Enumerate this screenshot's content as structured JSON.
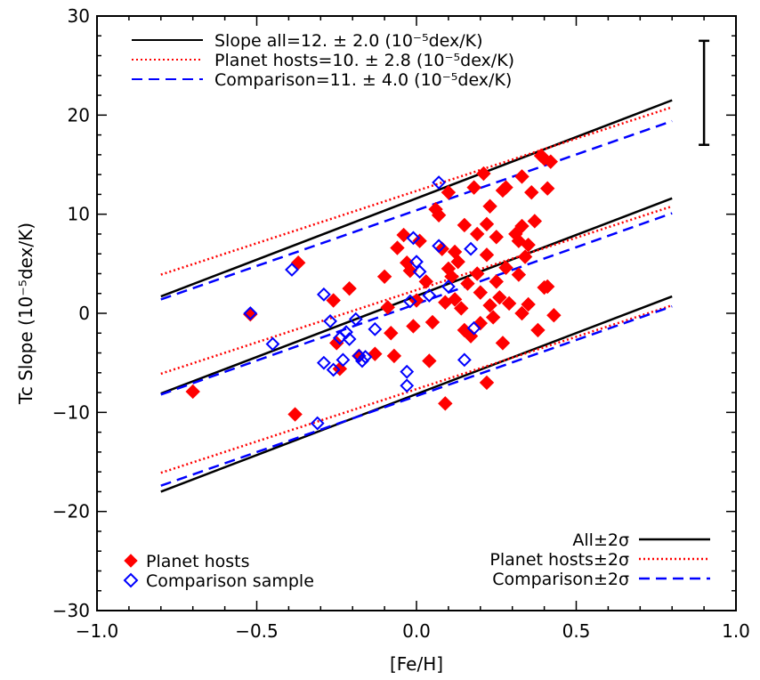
{
  "chart_data": {
    "type": "scatter",
    "xlabel": "[Fe/H]",
    "ylabel": "Tc Slope (10⁻⁵dex/K)",
    "xlim": [
      -1.0,
      1.0
    ],
    "ylim": [
      -30,
      30
    ],
    "x_ticks": [
      "−1.0",
      "−0.5",
      "0.0",
      "0.5",
      "1.0"
    ],
    "y_ticks": [
      "−30",
      "−20",
      "−10",
      "0",
      "10",
      "20",
      "30"
    ],
    "grid": false,
    "fit_legend": {
      "placement": "top-left",
      "entries": [
        {
          "label": "Slope all=12. ± 2.0 (10⁻⁵dex/K)",
          "style": "solid",
          "color": "#000000"
        },
        {
          "label": "Planet hosts=10. ± 2.8 (10⁻⁵dex/K)",
          "style": "dotted",
          "color": "#ff0000"
        },
        {
          "label": "Comparison=11. ± 4.0 (10⁻⁵dex/K)",
          "style": "dashed",
          "color": "#0000ff"
        }
      ]
    },
    "marker_legend": {
      "placement": "bottom-left",
      "entries": [
        {
          "label": "Planet hosts",
          "marker": "filled-diamond",
          "color": "#ff0000"
        },
        {
          "label": "Comparison sample",
          "marker": "open-diamond",
          "color": "#0000ff"
        }
      ]
    },
    "band_legend": {
      "placement": "bottom-right",
      "entries": [
        {
          "label": "All±2σ",
          "style": "solid",
          "color": "#000000"
        },
        {
          "label": "Planet hosts±2σ",
          "style": "dotted",
          "color": "#ff0000"
        },
        {
          "label": "Comparison±2σ",
          "style": "dashed",
          "color": "#0000ff"
        }
      ]
    },
    "error_bar": {
      "x": 0.9,
      "y_low": 17.0,
      "y_high": 27.5
    },
    "fit_lines": [
      {
        "series": "All",
        "color": "#000000",
        "style": "solid",
        "x": [
          -0.8,
          0.8
        ],
        "center": [
          -8.1,
          11.6
        ],
        "upper": [
          1.7,
          21.5
        ],
        "lower": [
          -18.0,
          1.7
        ]
      },
      {
        "series": "Planet hosts",
        "color": "#ff0000",
        "style": "dotted",
        "x": [
          -0.8,
          0.8
        ],
        "center": [
          -6.1,
          10.8
        ],
        "upper": [
          3.9,
          20.8
        ],
        "lower": [
          -16.1,
          0.8
        ]
      },
      {
        "series": "Comparison",
        "color": "#0000ff",
        "style": "dashed",
        "x": [
          -0.8,
          0.8
        ],
        "center": [
          -8.2,
          10.1
        ],
        "upper": [
          1.4,
          19.4
        ],
        "lower": [
          -17.4,
          0.7
        ]
      }
    ],
    "series": [
      {
        "name": "Planet hosts",
        "marker": "filled-diamond",
        "color": "#ff0000",
        "points": [
          [
            -0.7,
            -7.9
          ],
          [
            -0.52,
            -0.1
          ],
          [
            -0.37,
            5.1
          ],
          [
            -0.38,
            -10.2
          ],
          [
            -0.26,
            1.3
          ],
          [
            -0.25,
            -3.0
          ],
          [
            -0.24,
            -5.6
          ],
          [
            -0.21,
            2.5
          ],
          [
            -0.18,
            -4.3
          ],
          [
            -0.13,
            -4.1
          ],
          [
            -0.1,
            3.7
          ],
          [
            -0.09,
            0.6
          ],
          [
            -0.08,
            -2.0
          ],
          [
            -0.06,
            6.6
          ],
          [
            -0.04,
            7.9
          ],
          [
            -0.03,
            5.1
          ],
          [
            -0.02,
            4.3
          ],
          [
            -0.01,
            -1.3
          ],
          [
            0.0,
            1.3
          ],
          [
            0.01,
            7.3
          ],
          [
            0.03,
            3.2
          ],
          [
            0.04,
            -4.8
          ],
          [
            0.05,
            -0.9
          ],
          [
            0.06,
            10.5
          ],
          [
            0.07,
            9.9
          ],
          [
            0.08,
            6.5
          ],
          [
            0.09,
            1.1
          ],
          [
            0.09,
            -9.1
          ],
          [
            0.1,
            12.2
          ],
          [
            0.1,
            4.5
          ],
          [
            0.11,
            3.7
          ],
          [
            0.12,
            6.2
          ],
          [
            0.12,
            1.4
          ],
          [
            0.13,
            5.2
          ],
          [
            0.14,
            0.5
          ],
          [
            0.15,
            8.9
          ],
          [
            0.16,
            3.0
          ],
          [
            0.17,
            -2.3
          ],
          [
            0.18,
            12.7
          ],
          [
            0.19,
            4.0
          ],
          [
            0.2,
            2.1
          ],
          [
            0.2,
            -1.0
          ],
          [
            0.21,
            14.1
          ],
          [
            0.22,
            9.0
          ],
          [
            0.22,
            5.9
          ],
          [
            0.22,
            -7.0
          ],
          [
            0.23,
            10.8
          ],
          [
            0.23,
            0.8
          ],
          [
            0.24,
            -0.4
          ],
          [
            0.25,
            7.7
          ],
          [
            0.25,
            3.2
          ],
          [
            0.26,
            1.6
          ],
          [
            0.27,
            12.4
          ],
          [
            0.27,
            -3.0
          ],
          [
            0.28,
            12.7
          ],
          [
            0.28,
            4.6
          ],
          [
            0.29,
            1.0
          ],
          [
            0.31,
            8.0
          ],
          [
            0.32,
            3.9
          ],
          [
            0.32,
            7.3
          ],
          [
            0.33,
            13.8
          ],
          [
            0.33,
            8.8
          ],
          [
            0.34,
            5.7
          ],
          [
            0.35,
            6.9
          ],
          [
            0.35,
            0.9
          ],
          [
            0.36,
            12.2
          ],
          [
            0.37,
            9.3
          ],
          [
            0.38,
            -1.7
          ],
          [
            0.39,
            15.9
          ],
          [
            0.4,
            15.6
          ],
          [
            0.4,
            2.6
          ],
          [
            0.41,
            12.6
          ],
          [
            0.41,
            2.7
          ],
          [
            0.42,
            15.3
          ],
          [
            0.43,
            -0.2
          ],
          [
            0.33,
            0.0
          ],
          [
            0.19,
            8.0
          ],
          [
            0.15,
            -1.7
          ],
          [
            -0.07,
            -4.3
          ]
        ]
      },
      {
        "name": "Comparison sample",
        "marker": "open-diamond",
        "color": "#0000ff",
        "points": [
          [
            -0.52,
            0.0
          ],
          [
            -0.45,
            -3.1
          ],
          [
            -0.39,
            4.4
          ],
          [
            -0.31,
            -11.1
          ],
          [
            -0.29,
            1.9
          ],
          [
            -0.29,
            -5.0
          ],
          [
            -0.27,
            -0.8
          ],
          [
            -0.26,
            -5.7
          ],
          [
            -0.24,
            -2.5
          ],
          [
            -0.23,
            -4.7
          ],
          [
            -0.22,
            -1.9
          ],
          [
            -0.21,
            -2.6
          ],
          [
            -0.19,
            -0.6
          ],
          [
            -0.18,
            -4.3
          ],
          [
            -0.17,
            -4.8
          ],
          [
            -0.16,
            -4.4
          ],
          [
            -0.13,
            -1.6
          ],
          [
            -0.03,
            -7.3
          ],
          [
            -0.03,
            -5.9
          ],
          [
            -0.02,
            1.2
          ],
          [
            -0.01,
            7.6
          ],
          [
            0.0,
            5.2
          ],
          [
            0.01,
            4.2
          ],
          [
            0.04,
            1.8
          ],
          [
            0.07,
            6.8
          ],
          [
            0.07,
            13.2
          ],
          [
            0.1,
            2.7
          ],
          [
            0.15,
            -4.7
          ],
          [
            0.17,
            6.5
          ],
          [
            0.18,
            -1.5
          ]
        ]
      }
    ]
  }
}
